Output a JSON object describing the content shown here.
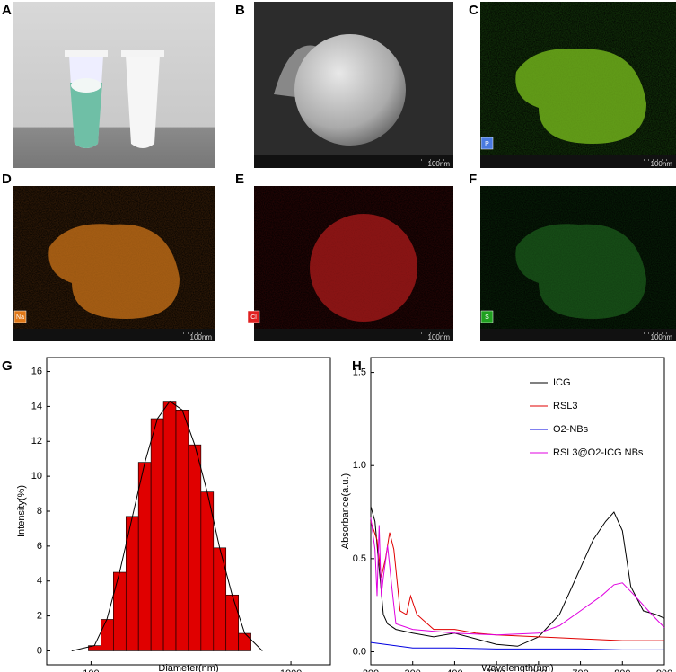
{
  "panels": [
    {
      "label": "A"
    },
    {
      "label": "B",
      "scale_bar": "100nm"
    },
    {
      "label": "C",
      "scale_bar": "100nm",
      "element": "P"
    },
    {
      "label": "D",
      "scale_bar": "100nm",
      "element": "Na"
    },
    {
      "label": "E",
      "scale_bar": "100nm",
      "element": "Cl"
    },
    {
      "label": "F",
      "scale_bar": "100nm",
      "element": "S"
    }
  ],
  "chart_data": [
    {
      "type": "histogram",
      "panel_label": "G",
      "x_label": "Diameter(nm)",
      "y_label": "Intensity(%)",
      "color": "#e00000",
      "log_x": true,
      "bins": [
        97,
        112,
        129.4,
        149.5,
        172.6,
        199.4,
        230.3,
        266,
        307.2,
        354.8,
        409.8,
        473.3,
        546.7,
        631.4
      ],
      "values": [
        0.3,
        1.8,
        4.5,
        7.7,
        10.8,
        13.3,
        14.3,
        13.8,
        11.8,
        9.1,
        5.9,
        3.2,
        1.0
      ],
      "fit": {
        "color": "#000000",
        "x": [
          80,
          104,
          120,
          139,
          161,
          186,
          215,
          248,
          286,
          330,
          381,
          440,
          508,
          587,
          720
        ],
        "values": [
          0,
          0.3,
          1.8,
          4.5,
          7.7,
          10.8,
          13.3,
          14.3,
          13.8,
          11.8,
          9.1,
          5.9,
          3.2,
          1.0,
          0
        ]
      },
      "xlim": [
        60,
        1575
      ],
      "xticks": [
        100,
        1000
      ],
      "ylim": [
        -0.8,
        16.8
      ],
      "yticks": [
        0,
        2,
        4,
        6,
        8,
        10,
        12,
        14,
        16
      ]
    },
    {
      "type": "line",
      "panel_label": "H",
      "x_label": "Wavelength(nm)",
      "y_label": "Absorbance(a.u.)",
      "legend": "top-right",
      "series": [
        {
          "name": "ICG",
          "color": "#000000",
          "x": [
            200,
            210,
            220,
            230,
            240,
            260,
            300,
            350,
            400,
            450,
            500,
            550,
            600,
            650,
            700,
            730,
            760,
            780,
            800,
            820,
            850,
            880,
            900
          ],
          "values": [
            0.78,
            0.7,
            0.45,
            0.2,
            0.15,
            0.12,
            0.1,
            0.08,
            0.1,
            0.07,
            0.04,
            0.03,
            0.08,
            0.2,
            0.45,
            0.6,
            0.7,
            0.75,
            0.65,
            0.35,
            0.22,
            0.2,
            0.18
          ]
        },
        {
          "name": "RSL3",
          "color": "#e00000",
          "x": [
            200,
            215,
            225,
            235,
            245,
            255,
            270,
            285,
            295,
            310,
            350,
            400,
            450,
            500,
            600,
            700,
            800,
            900
          ],
          "values": [
            0.7,
            0.6,
            0.4,
            0.5,
            0.64,
            0.55,
            0.22,
            0.2,
            0.3,
            0.2,
            0.12,
            0.12,
            0.1,
            0.09,
            0.08,
            0.07,
            0.06,
            0.06
          ]
        },
        {
          "name": "O2-NBs",
          "color": "#0000e0",
          "x": [
            200,
            300,
            400,
            500,
            600,
            700,
            800,
            900
          ],
          "values": [
            0.05,
            0.02,
            0.02,
            0.015,
            0.015,
            0.015,
            0.01,
            0.01
          ]
        },
        {
          "name": "RSL3@O2-ICG NBs",
          "color": "#e000e0",
          "x": [
            200,
            210,
            215,
            220,
            225,
            230,
            240,
            250,
            260,
            300,
            400,
            500,
            600,
            650,
            700,
            750,
            780,
            800,
            830,
            870,
            900
          ],
          "values": [
            0.72,
            0.55,
            0.3,
            0.68,
            0.3,
            0.4,
            0.57,
            0.35,
            0.15,
            0.12,
            0.1,
            0.09,
            0.1,
            0.14,
            0.22,
            0.3,
            0.36,
            0.37,
            0.3,
            0.2,
            0.13
          ]
        }
      ],
      "xlim": [
        200,
        900
      ],
      "xticks": [
        200,
        300,
        400,
        500,
        600,
        700,
        800,
        900
      ],
      "ylim": [
        -0.07,
        1.58
      ],
      "yticks": [
        {
          "value": 0,
          "label": "0.0"
        },
        {
          "value": 0.5,
          "label": "0.5"
        },
        {
          "value": 1,
          "label": "1.0"
        },
        {
          "value": 1.5,
          "label": "1.5"
        }
      ]
    }
  ]
}
